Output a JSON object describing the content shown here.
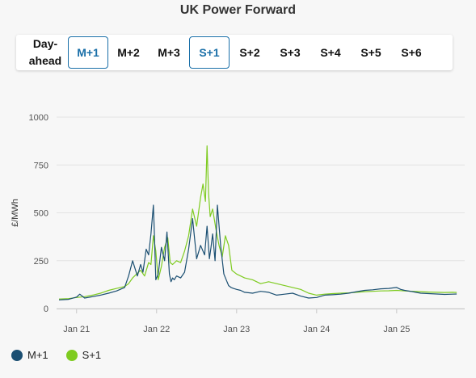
{
  "page": {
    "title": "UK Power Forward"
  },
  "tabs": [
    {
      "label_line1": "Day-",
      "label_line2": "ahead",
      "active": false
    },
    {
      "label": "M+1",
      "active": true
    },
    {
      "label": "M+2",
      "active": false
    },
    {
      "label": "M+3",
      "active": false
    },
    {
      "label": "S+1",
      "active": true
    },
    {
      "label": "S+2",
      "active": false
    },
    {
      "label": "S+3",
      "active": false
    },
    {
      "label": "S+4",
      "active": false
    },
    {
      "label": "S+5",
      "active": false
    },
    {
      "label": "S+6",
      "active": false
    }
  ],
  "colors": {
    "m1": "#1b4f72",
    "s1": "#7ecb20",
    "active_tab": "#1a6fa8",
    "grid": "#e3e3e3"
  },
  "chart_data": {
    "type": "line",
    "title": "",
    "xlabel": "",
    "ylabel": "£/MWh",
    "ylim": [
      0,
      1000
    ],
    "yticks": [
      0,
      250,
      500,
      750,
      1000
    ],
    "xlim": [
      2020.75,
      2025.85
    ],
    "xticks": [
      {
        "value": 2021,
        "label": "Jan 21"
      },
      {
        "value": 2022,
        "label": "Jan 22"
      },
      {
        "value": 2023,
        "label": "Jan 23"
      },
      {
        "value": 2024,
        "label": "Jan 24"
      },
      {
        "value": 2025,
        "label": "Jan 25"
      }
    ],
    "grid": true,
    "legend_position": "bottom-left",
    "series": [
      {
        "name": "M+1",
        "x": [
          2020.78,
          2020.9,
          2021.0,
          2021.04,
          2021.1,
          2021.2,
          2021.3,
          2021.4,
          2021.5,
          2021.6,
          2021.65,
          2021.7,
          2021.73,
          2021.76,
          2021.8,
          2021.83,
          2021.87,
          2021.9,
          2021.93,
          2021.96,
          2021.97,
          2021.99,
          2022.02,
          2022.06,
          2022.1,
          2022.13,
          2022.16,
          2022.18,
          2022.2,
          2022.22,
          2022.25,
          2022.3,
          2022.35,
          2022.4,
          2022.45,
          2022.5,
          2022.55,
          2022.6,
          2022.63,
          2022.66,
          2022.68,
          2022.7,
          2022.73,
          2022.76,
          2022.8,
          2022.84,
          2022.88,
          2022.9,
          2022.93,
          2022.96,
          2023.0,
          2023.05,
          2023.1,
          2023.2,
          2023.3,
          2023.4,
          2023.5,
          2023.6,
          2023.7,
          2023.8,
          2023.9,
          2024.0,
          2024.1,
          2024.2,
          2024.3,
          2024.4,
          2024.5,
          2024.6,
          2024.7,
          2024.8,
          2024.9,
          2025.0,
          2025.05,
          2025.1,
          2025.2,
          2025.3,
          2025.4,
          2025.5,
          2025.6,
          2025.7,
          2025.75
        ],
        "values": [
          45,
          48,
          60,
          75,
          55,
          62,
          70,
          80,
          92,
          110,
          170,
          250,
          210,
          170,
          230,
          190,
          310,
          280,
          390,
          540,
          420,
          150,
          180,
          320,
          250,
          400,
          180,
          140,
          160,
          150,
          170,
          160,
          190,
          310,
          470,
          260,
          330,
          280,
          430,
          260,
          320,
          390,
          250,
          540,
          330,
          180,
          140,
          120,
          110,
          105,
          100,
          95,
          85,
          80,
          90,
          85,
          70,
          75,
          80,
          65,
          55,
          58,
          70,
          72,
          75,
          80,
          88,
          95,
          98,
          103,
          105,
          110,
          100,
          95,
          88,
          80,
          78,
          76,
          74,
          75,
          76
        ]
      },
      {
        "name": "S+1",
        "x": [
          2020.78,
          2020.9,
          2021.0,
          2021.1,
          2021.2,
          2021.3,
          2021.4,
          2021.5,
          2021.6,
          2021.65,
          2021.7,
          2021.75,
          2021.8,
          2021.85,
          2021.9,
          2021.93,
          2021.96,
          2021.99,
          2022.02,
          2022.06,
          2022.1,
          2022.14,
          2022.17,
          2022.2,
          2022.25,
          2022.3,
          2022.35,
          2022.4,
          2022.45,
          2022.5,
          2022.55,
          2022.58,
          2022.61,
          2022.63,
          2022.65,
          2022.67,
          2022.7,
          2022.74,
          2022.78,
          2022.82,
          2022.86,
          2022.9,
          2022.94,
          2023.0,
          2023.1,
          2023.2,
          2023.3,
          2023.4,
          2023.5,
          2023.6,
          2023.7,
          2023.8,
          2023.9,
          2024.0,
          2024.1,
          2024.2,
          2024.3,
          2024.4,
          2024.5,
          2024.6,
          2024.7,
          2024.8,
          2024.9,
          2025.0,
          2025.1,
          2025.2,
          2025.3,
          2025.4,
          2025.5,
          2025.6,
          2025.7,
          2025.75
        ],
        "values": [
          50,
          52,
          58,
          62,
          70,
          80,
          95,
          105,
          115,
          130,
          160,
          180,
          200,
          170,
          240,
          230,
          380,
          300,
          150,
          220,
          320,
          370,
          240,
          230,
          250,
          240,
          300,
          380,
          520,
          430,
          580,
          650,
          560,
          850,
          600,
          480,
          520,
          420,
          330,
          270,
          380,
          330,
          200,
          180,
          160,
          150,
          130,
          140,
          130,
          120,
          110,
          100,
          80,
          70,
          75,
          78,
          80,
          82,
          85,
          88,
          90,
          92,
          93,
          95,
          92,
          90,
          88,
          86,
          85,
          84,
          85,
          84
        ]
      }
    ]
  }
}
